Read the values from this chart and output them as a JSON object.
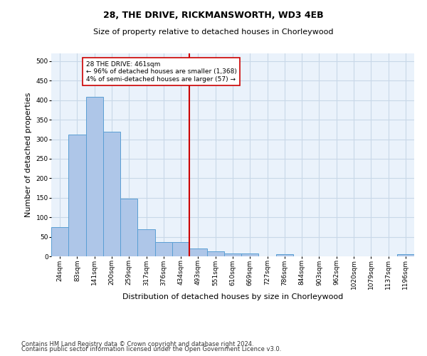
{
  "title": "28, THE DRIVE, RICKMANSWORTH, WD3 4EB",
  "subtitle": "Size of property relative to detached houses in Chorleywood",
  "xlabel": "Distribution of detached houses by size in Chorleywood",
  "ylabel": "Number of detached properties",
  "footnote1": "Contains HM Land Registry data © Crown copyright and database right 2024.",
  "footnote2": "Contains public sector information licensed under the Open Government Licence v3.0.",
  "bar_labels": [
    "24sqm",
    "83sqm",
    "141sqm",
    "200sqm",
    "259sqm",
    "317sqm",
    "376sqm",
    "434sqm",
    "493sqm",
    "551sqm",
    "610sqm",
    "669sqm",
    "727sqm",
    "786sqm",
    "844sqm",
    "903sqm",
    "962sqm",
    "1020sqm",
    "1079sqm",
    "1137sqm",
    "1196sqm"
  ],
  "bar_values": [
    75,
    312,
    408,
    320,
    148,
    70,
    36,
    36,
    20,
    12,
    7,
    8,
    0,
    5,
    0,
    0,
    0,
    0,
    0,
    0,
    5
  ],
  "bar_color": "#aec6e8",
  "bar_edge_color": "#5a9fd4",
  "vline_x": 7.5,
  "vline_color": "#cc0000",
  "annotation_text": "28 THE DRIVE: 461sqm\n← 96% of detached houses are smaller (1,368)\n4% of semi-detached houses are larger (57) →",
  "annotation_box_color": "#ffffff",
  "annotation_box_edge_color": "#cc0000",
  "ylim": [
    0,
    520
  ],
  "yticks": [
    0,
    50,
    100,
    150,
    200,
    250,
    300,
    350,
    400,
    450,
    500
  ],
  "grid_color": "#c8d8e8",
  "background_color": "#eaf2fb",
  "title_fontsize": 9,
  "subtitle_fontsize": 8,
  "tick_fontsize": 6.5,
  "ylabel_fontsize": 8,
  "xlabel_fontsize": 8,
  "footnote_fontsize": 6
}
